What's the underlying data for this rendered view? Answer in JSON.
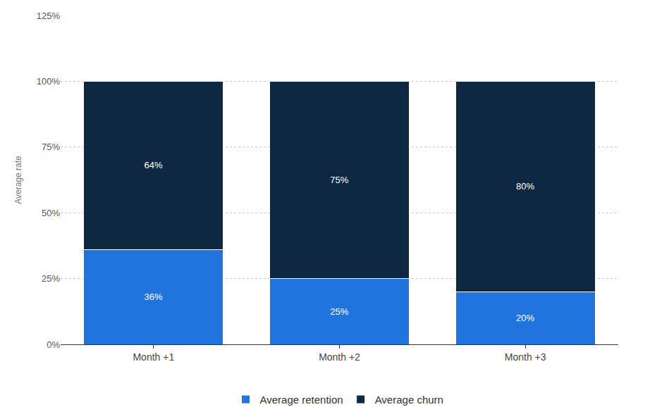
{
  "chart_data": {
    "type": "bar",
    "stacked": true,
    "categories": [
      "Month +1",
      "Month +2",
      "Month +3"
    ],
    "series": [
      {
        "name": "Average retention",
        "color": "#2174de",
        "values": [
          36,
          25,
          20
        ],
        "value_labels": [
          "36%",
          "25%",
          "20%"
        ]
      },
      {
        "name": "Average churn",
        "color": "#0e2841",
        "values": [
          64,
          75,
          80
        ],
        "value_labels": [
          "64%",
          "75%",
          "80%"
        ]
      }
    ],
    "y_label": "Average rate",
    "ylim": [
      0,
      125
    ],
    "yticks": [
      {
        "value": 0,
        "label": "0%"
      },
      {
        "value": 25,
        "label": "25%"
      },
      {
        "value": 50,
        "label": "50%"
      },
      {
        "value": 75,
        "label": "75%"
      },
      {
        "value": 100,
        "label": "100%"
      },
      {
        "value": 125,
        "label": "125%"
      }
    ],
    "grid": true,
    "legend": "bottom",
    "data_labels": true
  }
}
